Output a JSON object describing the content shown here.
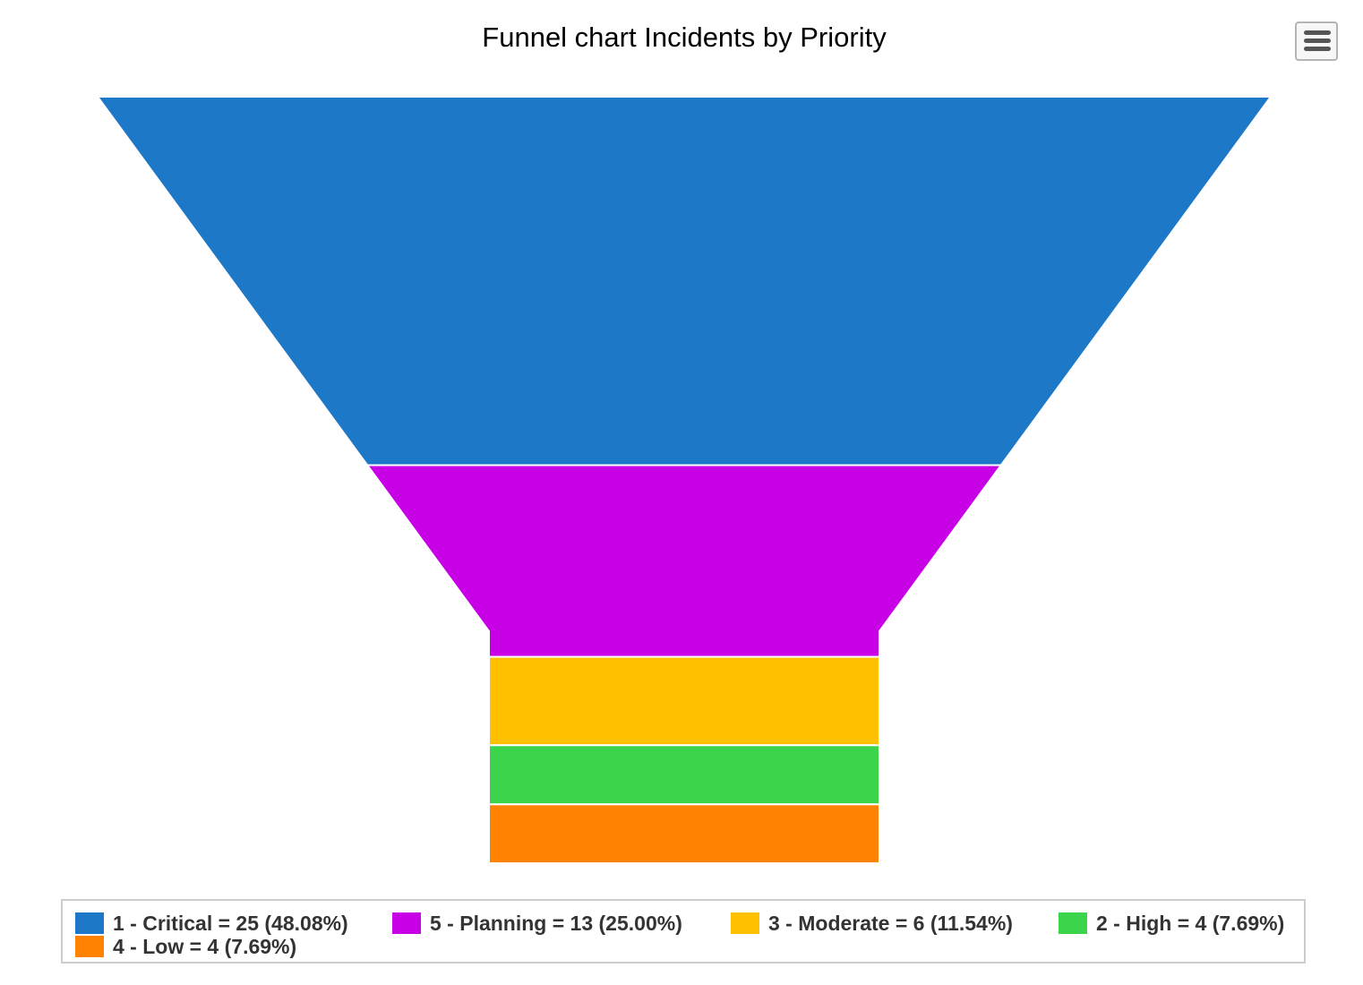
{
  "chart_data": {
    "type": "funnel",
    "title": "Funnel chart Incidents by Priority",
    "legend_position": "bottom",
    "series": [
      {
        "name": "1 - Critical",
        "value": 25,
        "percent": "48.08%",
        "label": "1 - Critical = 25 (48.08%)",
        "color": "#1e78c8"
      },
      {
        "name": "5 - Planning",
        "value": 13,
        "percent": "25.00%",
        "label": "5 - Planning = 13 (25.00%)",
        "color": "#c800e6"
      },
      {
        "name": "3 - Moderate",
        "value": 6,
        "percent": "11.54%",
        "label": "3 - Moderate = 6 (11.54%)",
        "color": "#ffc000"
      },
      {
        "name": "2 - High",
        "value": 4,
        "percent": "7.69%",
        "label": "2 - High = 4 (7.69%)",
        "color": "#3cd44b"
      },
      {
        "name": "4 - Low",
        "value": 4,
        "percent": "7.69%",
        "label": "4 - Low = 4 (7.69%)",
        "color": "#ff8200"
      }
    ]
  },
  "toolbar": {
    "menu_icon": "hamburger-menu-icon"
  }
}
